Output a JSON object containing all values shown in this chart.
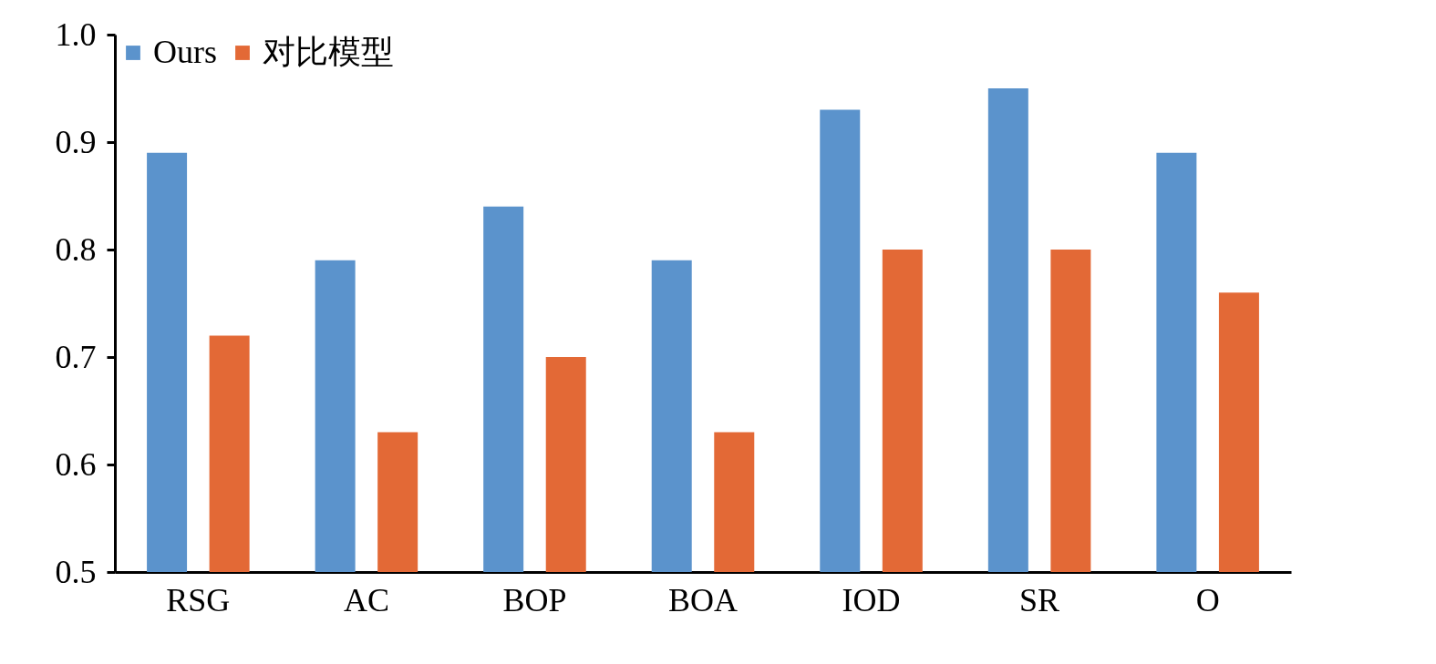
{
  "chart_data": {
    "type": "bar",
    "categories": [
      "RSG",
      "AC",
      "BOP",
      "BOA",
      "IOD",
      "SR",
      "O"
    ],
    "series": [
      {
        "name": "Ours",
        "color": "#5b93cc",
        "values": [
          0.89,
          0.79,
          0.84,
          0.79,
          0.93,
          0.95,
          0.89
        ]
      },
      {
        "name": "对比模型",
        "color": "#e36936",
        "values": [
          0.72,
          0.63,
          0.7,
          0.63,
          0.8,
          0.8,
          0.76
        ]
      }
    ],
    "ylim": [
      0.5,
      1.0
    ],
    "yticks": [
      0.5,
      0.6,
      0.7,
      0.8,
      0.9,
      {
        "value": 1.0,
        "label": "1.0"
      }
    ],
    "grid": false,
    "legend": "top left"
  }
}
